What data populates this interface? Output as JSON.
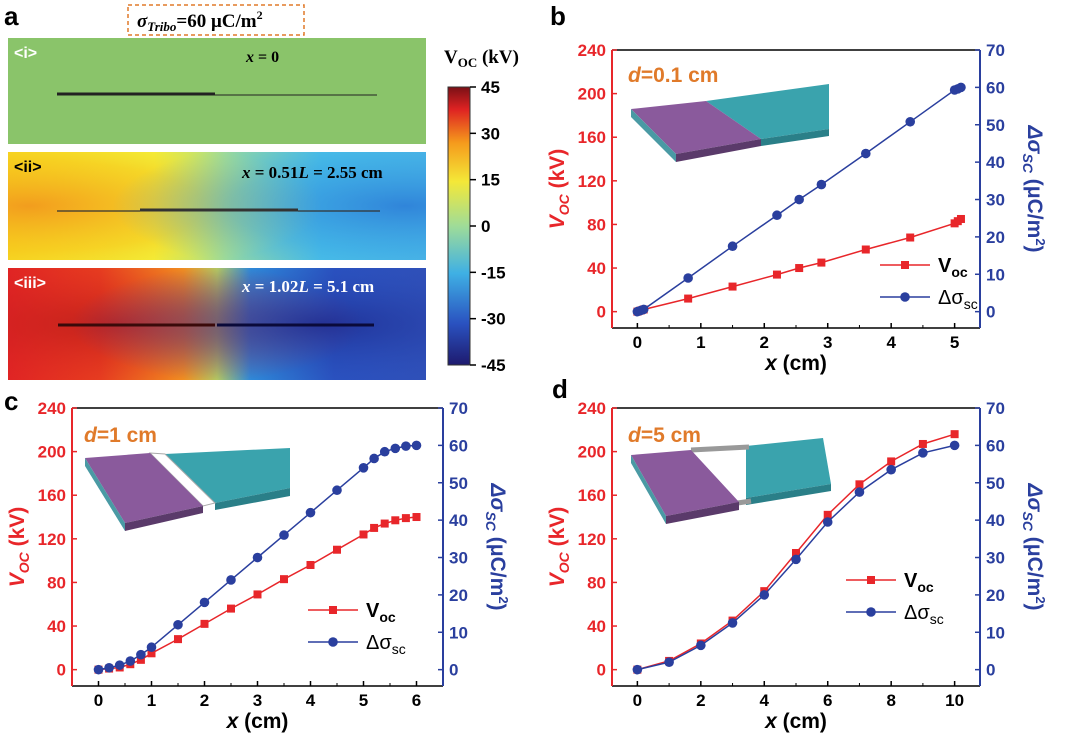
{
  "panel_labels": {
    "a": "a",
    "b": "b",
    "c": "c",
    "d": "d"
  },
  "panel_a": {
    "sigma_label": "σTribo=60 μC/m²",
    "sigma_sym": "σ",
    "sigma_sub": "Tribo",
    "sigma_rest": "=60 μC/m",
    "sigma_sup": "2",
    "colorbar_title": "VOC (kV)",
    "colorbar_title_main": "V",
    "colorbar_title_sub": "OC",
    "colorbar_title_unit": " (kV)",
    "colorbar_ticks": [
      "45",
      "30",
      "15",
      "0",
      "-15",
      "-30",
      "-45"
    ],
    "colorbar_colors": [
      "#1e1a6e",
      "#2a52c0",
      "#3fb0e4",
      "#9fdc98",
      "#f4e838",
      "#f59a1c",
      "#de2222",
      "#7a1016"
    ],
    "maps": [
      {
        "tag": "<i>",
        "position_text": "x = 0",
        "x_sym": "x",
        "rest": " = 0"
      },
      {
        "tag": "<ii>",
        "position_text": "x = 0.51L = 2.55 cm",
        "x_sym": "x",
        "mid": " = 0.51",
        "l_sym": "L",
        "rest": " = 2.55 cm"
      },
      {
        "tag": "<iii>",
        "position_text": "x = 1.02L = 5.1 cm",
        "x_sym": "x",
        "mid": " = 1.02",
        "l_sym": "L",
        "rest": " = 5.1 cm"
      }
    ],
    "map_background_i": "#8ac46a"
  },
  "colors": {
    "voc": "#e8262a",
    "sigma": "#2a3f9e",
    "inset_purple": "#8a5a9c",
    "inset_teal": "#3aa3ad",
    "d_label": "#e07a2a"
  },
  "chart_data": [
    {
      "panel": "b",
      "type": "line",
      "annotation": "d=0.1 cm",
      "annotation_var": "d",
      "annotation_rest": "=0.1 cm",
      "xlabel": "x (cm)",
      "xlabel_var": "x",
      "xlabel_rest": " (cm)",
      "ylabel_left": "VOC (kV)",
      "ylabel_right": "Δσsc (μC/m²)",
      "xlim": [
        -0.4,
        5.4
      ],
      "ylim_left": [
        -15,
        240
      ],
      "ylim_right": [
        -4.375,
        70
      ],
      "x_ticks": [
        "0",
        "1",
        "2",
        "3",
        "4",
        "5"
      ],
      "y_ticks_left": [
        "0",
        "40",
        "80",
        "120",
        "160",
        "200",
        "240"
      ],
      "y_ticks_right": [
        "0",
        "10",
        "20",
        "30",
        "40",
        "50",
        "60",
        "70"
      ],
      "series": [
        {
          "name": "Voc",
          "marker": "square",
          "axis": "left",
          "x": [
            0,
            0.05,
            0.1,
            0.8,
            1.5,
            2.2,
            2.55,
            2.9,
            3.6,
            4.3,
            5.0,
            5.05,
            5.1
          ],
          "values": [
            0,
            1,
            2,
            12,
            23,
            34,
            40,
            45,
            57,
            68,
            81,
            83,
            85
          ]
        },
        {
          "name": "Δσsc",
          "marker": "circle",
          "axis": "right",
          "x": [
            0,
            0.05,
            0.1,
            0.8,
            1.5,
            2.2,
            2.55,
            2.9,
            3.6,
            4.3,
            5.0,
            5.05,
            5.1
          ],
          "values": [
            0,
            0.3,
            0.6,
            9,
            17.5,
            25.8,
            30,
            34,
            42.3,
            50.8,
            59.3,
            59.6,
            60
          ]
        }
      ],
      "legend": [
        {
          "main": "V",
          "sub": "oc"
        },
        {
          "main": "Δσ",
          "sub": "sc"
        }
      ]
    },
    {
      "panel": "c",
      "type": "line",
      "annotation": "d=1 cm",
      "annotation_var": "d",
      "annotation_rest": "=1 cm",
      "xlabel": "x (cm)",
      "xlabel_var": "x",
      "xlabel_rest": " (cm)",
      "ylabel_left": "VOC (kV)",
      "ylabel_right": "Δσsc (μC/m²)",
      "xlim": [
        -0.5,
        6.5
      ],
      "ylim_left": [
        -15,
        240
      ],
      "ylim_right": [
        -4.375,
        70
      ],
      "x_ticks": [
        "0",
        "1",
        "2",
        "3",
        "4",
        "5",
        "6"
      ],
      "y_ticks_left": [
        "0",
        "40",
        "80",
        "120",
        "160",
        "200",
        "240"
      ],
      "y_ticks_right": [
        "0",
        "10",
        "20",
        "30",
        "40",
        "50",
        "60",
        "70"
      ],
      "series": [
        {
          "name": "Voc",
          "marker": "square",
          "axis": "left",
          "x": [
            0,
            0.2,
            0.4,
            0.6,
            0.8,
            1.0,
            1.5,
            2.0,
            2.5,
            3.0,
            3.5,
            4.0,
            4.5,
            5.0,
            5.2,
            5.4,
            5.6,
            5.8,
            6.0
          ],
          "values": [
            0,
            1,
            2,
            5,
            9,
            15,
            28,
            42,
            56,
            69,
            83,
            96,
            110,
            124,
            130,
            134,
            137,
            139,
            140
          ]
        },
        {
          "name": "Δσsc",
          "marker": "circle",
          "axis": "right",
          "x": [
            0,
            0.2,
            0.4,
            0.6,
            0.8,
            1.0,
            1.5,
            2.0,
            2.5,
            3.0,
            3.5,
            4.0,
            4.5,
            5.0,
            5.2,
            5.4,
            5.6,
            5.8,
            6.0
          ],
          "values": [
            0,
            0.5,
            1.2,
            2.3,
            4,
            6,
            12,
            18,
            24,
            30,
            36,
            42,
            48,
            54,
            56.5,
            58.3,
            59.2,
            59.8,
            60
          ]
        }
      ],
      "legend": [
        {
          "main": "V",
          "sub": "oc"
        },
        {
          "main": "Δσ",
          "sub": "sc"
        }
      ]
    },
    {
      "panel": "d",
      "type": "line",
      "annotation": "d=5 cm",
      "annotation_var": "d",
      "annotation_rest": "=5 cm",
      "xlabel": "x (cm)",
      "xlabel_var": "x",
      "xlabel_rest": " (cm)",
      "ylabel_left": "VOC (kV)",
      "ylabel_right": "Δσsc (μC/m²)",
      "xlim": [
        -0.8,
        10.8
      ],
      "ylim_left": [
        -15,
        240
      ],
      "ylim_right": [
        -4.375,
        70
      ],
      "x_ticks": [
        "0",
        "2",
        "4",
        "6",
        "8",
        "10"
      ],
      "y_ticks_left": [
        "0",
        "40",
        "80",
        "120",
        "160",
        "200",
        "240"
      ],
      "y_ticks_right": [
        "0",
        "10",
        "20",
        "30",
        "40",
        "50",
        "60",
        "70"
      ],
      "series": [
        {
          "name": "Voc",
          "marker": "square",
          "axis": "left",
          "x": [
            0,
            1,
            2,
            3,
            4,
            5,
            6,
            7,
            8,
            9,
            10
          ],
          "values": [
            0,
            8,
            24,
            45,
            72,
            107,
            142,
            170,
            191,
            207,
            216
          ]
        },
        {
          "name": "Δσsc",
          "marker": "circle",
          "axis": "right",
          "x": [
            0,
            1,
            2,
            3,
            4,
            5,
            6,
            7,
            8,
            9,
            10
          ],
          "values": [
            0,
            2,
            6.5,
            12.5,
            20,
            29.5,
            39.5,
            47.5,
            53.5,
            58,
            60
          ]
        }
      ],
      "legend": [
        {
          "main": "V",
          "sub": "oc"
        },
        {
          "main": "Δσ",
          "sub": "sc"
        }
      ]
    }
  ]
}
